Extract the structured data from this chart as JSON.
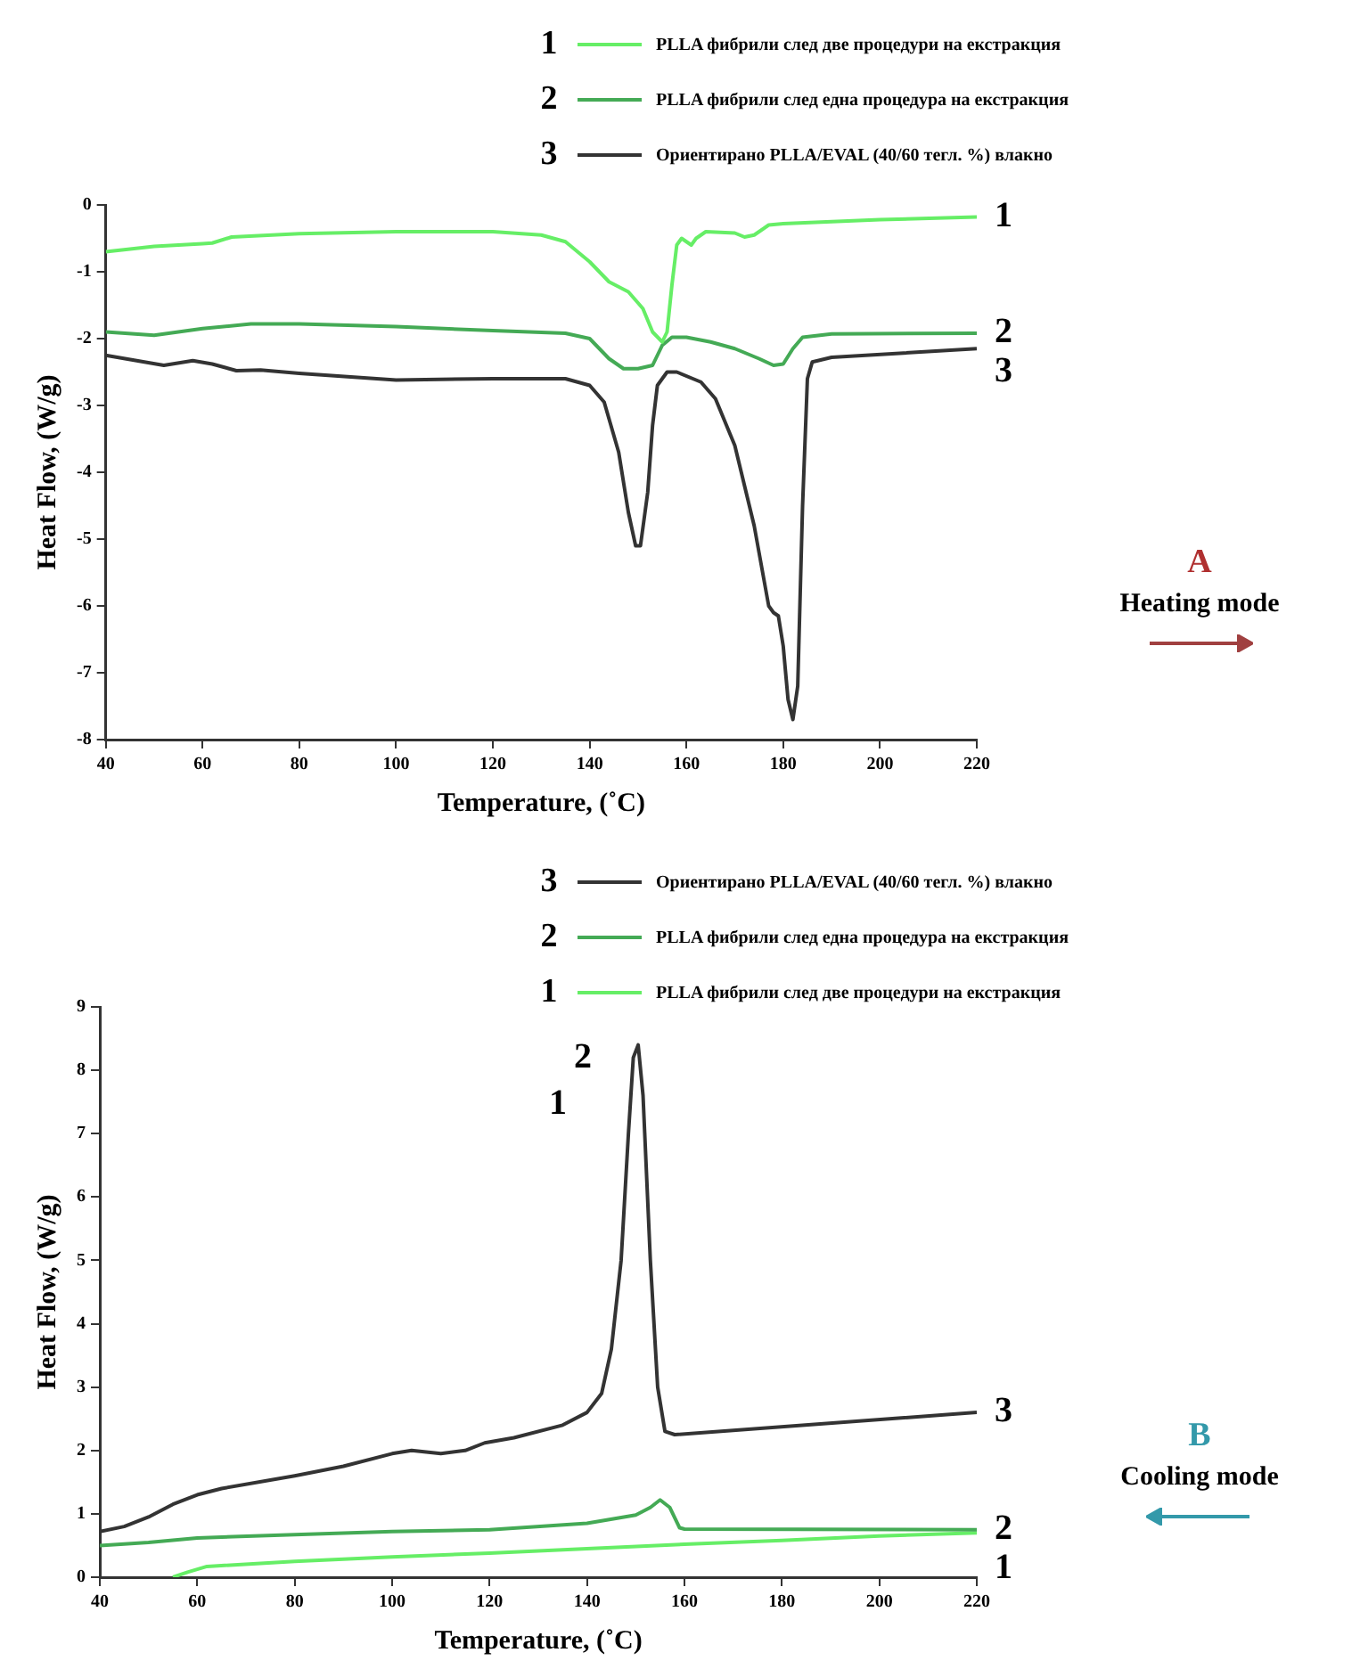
{
  "chart_data": [
    {
      "type": "line",
      "xlabel": "Temperature, (˚C)",
      "ylabel": "Heat Flow, (W/g)",
      "xlim": [
        40,
        220
      ],
      "xticks": [
        40,
        60,
        80,
        100,
        120,
        140,
        160,
        180,
        200,
        220
      ],
      "ylim": [
        -8,
        0
      ],
      "yticks": [
        -8,
        -7,
        -6,
        -5,
        -4,
        -3,
        -2,
        -1,
        0
      ],
      "grid": false,
      "legend": "top right",
      "series": [
        {
          "name": "PLLA фибрили след две процедури на екстракция",
          "color": "#66ee66",
          "x": [
            40,
            50,
            60,
            62,
            66,
            80,
            100,
            120,
            130,
            135,
            140,
            144,
            148,
            151,
            153,
            155,
            156,
            157,
            158,
            159,
            161,
            162,
            164,
            170,
            172,
            174,
            177,
            180,
            200,
            220
          ],
          "values": [
            -0.7,
            -0.62,
            -0.58,
            -0.57,
            -0.48,
            -0.43,
            -0.4,
            -0.4,
            -0.45,
            -0.55,
            -0.85,
            -1.15,
            -1.3,
            -1.55,
            -1.9,
            -2.05,
            -1.9,
            -1.2,
            -0.6,
            -0.5,
            -0.6,
            -0.5,
            -0.4,
            -0.42,
            -0.48,
            -0.45,
            -0.3,
            -0.28,
            -0.22,
            -0.18
          ]
        },
        {
          "name": "PLLA фибрили след една процедура на екстракция",
          "color": "#44aa55",
          "x": [
            40,
            50,
            60,
            70,
            80,
            100,
            120,
            135,
            140,
            144,
            147,
            150,
            153,
            155,
            157,
            160,
            165,
            170,
            175,
            178,
            180,
            182,
            184,
            190,
            220
          ],
          "values": [
            -1.9,
            -1.95,
            -1.85,
            -1.78,
            -1.78,
            -1.82,
            -1.88,
            -1.92,
            -2.0,
            -2.3,
            -2.45,
            -2.45,
            -2.4,
            -2.1,
            -1.98,
            -1.98,
            -2.05,
            -2.15,
            -2.3,
            -2.4,
            -2.38,
            -2.15,
            -1.98,
            -1.93,
            -1.92
          ]
        },
        {
          "name": "Ориентирано PLLA/EVAL (40/60 тегл. %) влакно",
          "color": "#333333",
          "x": [
            40,
            48,
            52,
            58,
            62,
            67,
            72,
            80,
            100,
            120,
            135,
            140,
            143,
            146,
            148,
            149.5,
            150.5,
            152,
            153,
            154,
            156,
            158,
            163,
            166,
            170,
            174,
            177,
            178,
            179,
            180,
            181,
            182,
            183,
            184,
            185,
            186,
            190,
            220
          ],
          "values": [
            -2.25,
            -2.35,
            -2.4,
            -2.33,
            -2.38,
            -2.48,
            -2.47,
            -2.52,
            -2.62,
            -2.6,
            -2.6,
            -2.7,
            -2.95,
            -3.7,
            -4.6,
            -5.1,
            -5.1,
            -4.3,
            -3.3,
            -2.7,
            -2.5,
            -2.5,
            -2.65,
            -2.9,
            -3.6,
            -4.8,
            -6.0,
            -6.1,
            -6.15,
            -6.6,
            -7.4,
            -7.7,
            -7.2,
            -4.5,
            -2.6,
            -2.35,
            -2.28,
            -2.15
          ]
        }
      ],
      "annotations": [
        "1",
        "2",
        "3",
        "A",
        "Heating mode"
      ]
    },
    {
      "type": "line",
      "xlabel": "Temperature, (˚C)",
      "ylabel": "Heat Flow, (W/g)",
      "xlim": [
        40,
        220
      ],
      "xticks": [
        40,
        60,
        80,
        100,
        120,
        140,
        160,
        180,
        200,
        220
      ],
      "ylim": [
        0,
        9
      ],
      "yticks": [
        0,
        1,
        2,
        3,
        4,
        5,
        6,
        7,
        8,
        9
      ],
      "grid": false,
      "legend": "top right",
      "series": [
        {
          "name": "Ориентирано PLLA/EVAL (40/60 тегл. %) влакно",
          "color": "#333333",
          "x": [
            40,
            45,
            50,
            55,
            60,
            65,
            80,
            90,
            100,
            104,
            110,
            115,
            119,
            125,
            135,
            140,
            143,
            145,
            147,
            148.5,
            149.5,
            150.5,
            151.5,
            153,
            154.5,
            156,
            158,
            220
          ],
          "values": [
            0.72,
            0.8,
            0.95,
            1.15,
            1.3,
            1.4,
            1.6,
            1.75,
            1.95,
            2.0,
            1.95,
            2.0,
            2.12,
            2.2,
            2.4,
            2.6,
            2.9,
            3.6,
            5.0,
            7.0,
            8.2,
            8.4,
            7.6,
            5.0,
            3.0,
            2.3,
            2.25,
            2.6
          ]
        },
        {
          "name": "PLLA фибрили след една процедура на екстракция",
          "color": "#44aa55",
          "x": [
            40,
            50,
            60,
            80,
            100,
            120,
            140,
            150,
            153,
            155,
            157,
            159,
            160,
            220
          ],
          "values": [
            0.5,
            0.55,
            0.62,
            0.67,
            0.72,
            0.75,
            0.85,
            0.98,
            1.1,
            1.22,
            1.1,
            0.78,
            0.76,
            0.75
          ]
        },
        {
          "name": "PLLA фибрили след две процедури на екстракция",
          "color": "#66ee66",
          "x": [
            55,
            58,
            62,
            80,
            100,
            120,
            140,
            160,
            180,
            200,
            220
          ],
          "values": [
            0,
            0.08,
            0.17,
            0.25,
            0.32,
            0.38,
            0.45,
            0.52,
            0.58,
            0.65,
            0.7
          ]
        }
      ],
      "annotations": [
        "3",
        "2",
        "1",
        "2",
        "1",
        "B",
        "Cooling mode"
      ]
    }
  ]
}
